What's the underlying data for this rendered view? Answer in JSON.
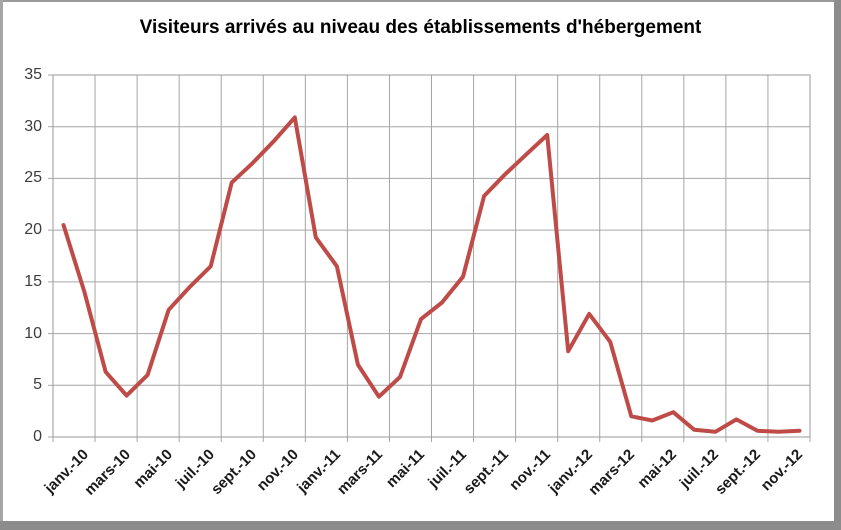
{
  "chart_data": {
    "type": "line",
    "title": "Visiteurs arrivés au niveau des établissements d'hébergement",
    "x_tick_labels": [
      "janv.-10",
      "mars-10",
      "mai-10",
      "juil.-10",
      "sept.-10",
      "nov.-10",
      "janv.-11",
      "mars-11",
      "mai-11",
      "juil.-11",
      "sept.-11",
      "nov.-11",
      "janv.-12",
      "mars-12",
      "mai-12",
      "juil.-12",
      "sept.-12",
      "nov.-12"
    ],
    "points_per_tick": 2,
    "values": [
      20.5,
      14.0,
      6.3,
      4.0,
      6.0,
      12.3,
      14.5,
      16.5,
      24.6,
      26.5,
      28.6,
      30.9,
      19.3,
      16.5,
      7.0,
      3.9,
      5.8,
      11.4,
      13.0,
      15.5,
      23.3,
      25.4,
      27.3,
      29.2,
      8.3,
      11.9,
      9.2,
      2.0,
      1.6,
      2.4,
      0.7,
      0.5,
      1.7,
      0.6,
      0.5,
      0.6
    ],
    "y_ticks": [
      0,
      5,
      10,
      15,
      20,
      25,
      30,
      35
    ],
    "ylim": [
      0,
      35
    ],
    "grid": true,
    "legend": "none",
    "line_color": "#BE4B48",
    "grid_color": "#A6A6A6",
    "plot_border_color": "#999999",
    "y_label_color": "#3D3D3D",
    "x_label_color": "#1A1A1A"
  }
}
